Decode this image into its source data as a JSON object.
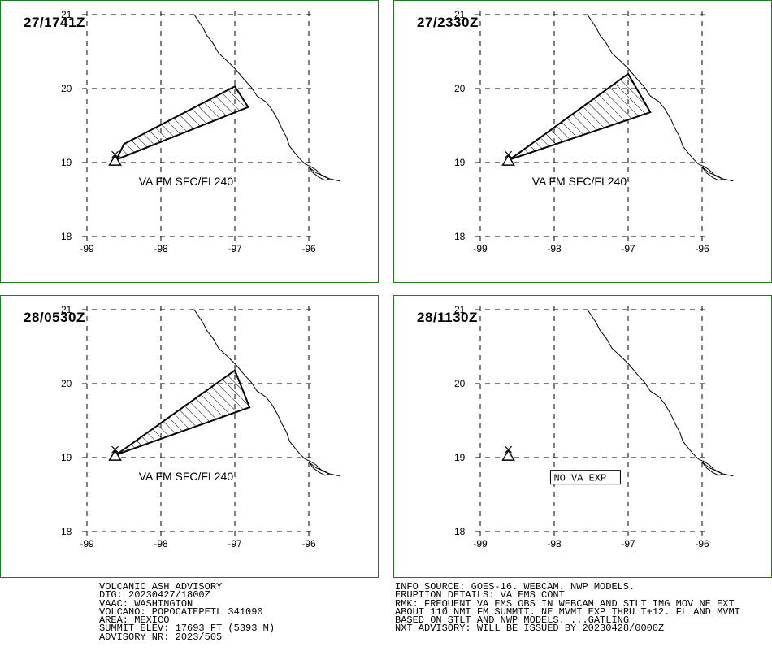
{
  "panels": [
    {
      "time": "27/1741Z",
      "plume": [
        [
          -98.6,
          19.04
        ],
        [
          -98.5,
          19.25
        ],
        [
          -97.0,
          20.03
        ],
        [
          -96.82,
          19.75
        ]
      ],
      "label": "VA FM SFC/FL240"
    },
    {
      "time": "27/2330Z",
      "plume": [
        [
          -98.6,
          19.04
        ],
        [
          -97.0,
          20.2
        ],
        [
          -96.7,
          19.68
        ]
      ],
      "label": "VA FM SFC/FL240"
    },
    {
      "time": "28/0530Z",
      "plume": [
        [
          -98.6,
          19.04
        ],
        [
          -97.0,
          20.18
        ],
        [
          -96.8,
          19.68
        ]
      ],
      "label": "VA FM SFC/FL240"
    },
    {
      "time": "28/1130Z",
      "plume": [],
      "label": "NO VA EXP"
    }
  ],
  "axes": {
    "lon_ticks": [
      "-99",
      "-98",
      "-97",
      "-96"
    ],
    "lat_ticks": [
      "21",
      "20",
      "19",
      "18"
    ]
  },
  "volcano": {
    "lon": -98.62,
    "lat": 19.02
  },
  "advisory_left": [
    "VOLCANIC ASH ADVISORY",
    "DTG: 20230427/1800Z",
    "VAAC: WASHINGTON",
    "VOLCANO: POPOCATEPETL 341090",
    "AREA: MEXICO",
    "SUMMIT ELEV: 17693 FT (5393 M)",
    "ADVISORY NR: 2023/505"
  ],
  "advisory_right": [
    "INFO SOURCE: GOES-16. WEBCAM. NWP MODELS.",
    "ERUPTION DETAILS: VA EMS CONT",
    "RMK: FREQUENT VA EMS OBS IN WEBCAM AND STLT IMG MOV NE EXT",
    "ABOUT 110 NMI FM SUMMIT. NE MVMT EXP THRU T+12. FL AND MVMT",
    "BASED ON STLT AND NWP MODELS. ...GATLING",
    "NXT ADVISORY: WILL BE ISSUED BY 20230428/0000Z"
  ],
  "colors": {
    "frame": "#1f7a1f",
    "ink": "#000000",
    "background": "#ffffff"
  }
}
